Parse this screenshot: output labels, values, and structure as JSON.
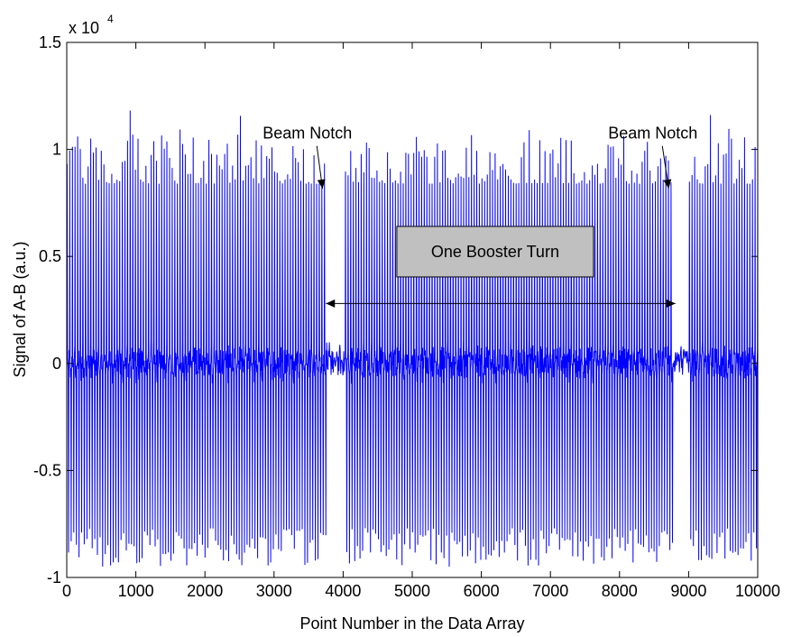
{
  "chart_data": {
    "type": "line",
    "title": "",
    "xlabel": "Point Number in the Data Array",
    "ylabel": "Signal of A-B (a.u.)",
    "y_exponent_label": "x 10",
    "y_exponent_power": "4",
    "xlim": [
      0,
      10000
    ],
    "ylim": [
      -1,
      1.5
    ],
    "y_multiplier": 10000,
    "grid": false,
    "legend": "none",
    "xticks": [
      0,
      1000,
      2000,
      3000,
      4000,
      5000,
      6000,
      7000,
      8000,
      9000,
      10000
    ],
    "xtick_labels": [
      "0",
      "1000",
      "2000",
      "3000",
      "4000",
      "5000",
      "6000",
      "7000",
      "8000",
      "9000",
      "10000"
    ],
    "yticks": [
      -1,
      -0.5,
      0,
      0.5,
      1,
      1.5
    ],
    "ytick_labels": [
      "-1",
      "-0.5",
      "0",
      "0.5",
      "1",
      "1.5"
    ],
    "series": [
      {
        "color": "#0000ff",
        "description": "oscillating beam-position signal, approx 38 samples per cycle, envelope about +0.93/-0.86 (x10^4) with small baseline band near 0",
        "cycle_period_points": 38,
        "peak_range": [
          0.84,
          1.1
        ],
        "trough_range": [
          -0.95,
          -0.77
        ],
        "notches": [
          {
            "start": 3780,
            "end": 3990
          },
          {
            "start": 8790,
            "end": 8990
          }
        ]
      }
    ],
    "annotations": [
      {
        "text": "Beam Notch",
        "x": 3750,
        "y": 1.05,
        "arrow_to": [
          3780,
          0.8
        ]
      },
      {
        "text": "Beam Notch",
        "x": 8750,
        "y": 1.05,
        "arrow_to": [
          8790,
          0.8
        ]
      },
      {
        "text": "One Booster Turn",
        "x": 6200,
        "y": 0.48,
        "boxed": true
      },
      {
        "text": "",
        "double_arrow": true,
        "x_from": 3750,
        "x_to": 8810,
        "y": 0.28
      }
    ],
    "colors": {
      "line": "#0000ff",
      "axes": "#000000",
      "box_fill": "#c0c0c0"
    }
  }
}
